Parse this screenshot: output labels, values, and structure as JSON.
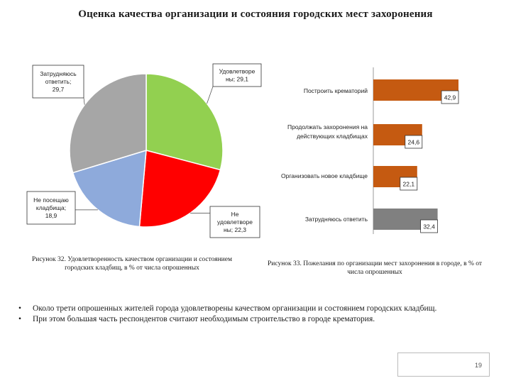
{
  "title": "Оценка качества организации и состояния городских мест захоронения",
  "chart_data": [
    {
      "type": "pie",
      "categories": [
        "Удовлетворены",
        "Не удовлетворены",
        "Не посещаю кладбища",
        "Затрудняюсь ответить"
      ],
      "values": [
        29.1,
        22.3,
        18.9,
        29.7
      ],
      "labels": [
        "Удовлетворе ны; 29,1",
        "Не удовлетворе ны; 22,3",
        "Не посещаю кладбища; 18,9",
        "Затрудняюсь ответить; 29,7"
      ],
      "colors": [
        "#92d050",
        "#ff0000",
        "#8eaadb",
        "#a6a6a6"
      ],
      "caption": "Рисунок 32. Удовлетворенность качеством организации и состоянием городских кладбищ, в % от числа опрошенных"
    },
    {
      "type": "bar",
      "orientation": "horizontal",
      "categories": [
        "Построить крематорий",
        "Продолжать захоронения на действующих кладбищах",
        "Организовать новое кладбище",
        "Затрудняюсь ответить"
      ],
      "category_lines": [
        [
          "Построить крематорий"
        ],
        [
          "Продолжать захоронения на",
          "действующих кладбищах"
        ],
        [
          "Организовать новое кладбище"
        ],
        [
          "Затрудняюсь ответить"
        ]
      ],
      "values": [
        42.9,
        24.6,
        22.1,
        32.4
      ],
      "value_labels": [
        "42,9",
        "24,6",
        "22,1",
        "32,4"
      ],
      "colors": [
        "#c55a11",
        "#c55a11",
        "#c55a11",
        "#808080"
      ],
      "xlim": [
        0,
        50
      ],
      "caption": "Рисунок 33. Пожелания по организации мест захоронения в городе, в % от числа опрошенных"
    }
  ],
  "bullets": [
    "Около трети опрошенных жителей города удовлетворены качеством организации и состоянием городских кладбищ.",
    "При этом большая часть респондентов считают необходимым строительство в городе крематория."
  ],
  "page_number": "19"
}
